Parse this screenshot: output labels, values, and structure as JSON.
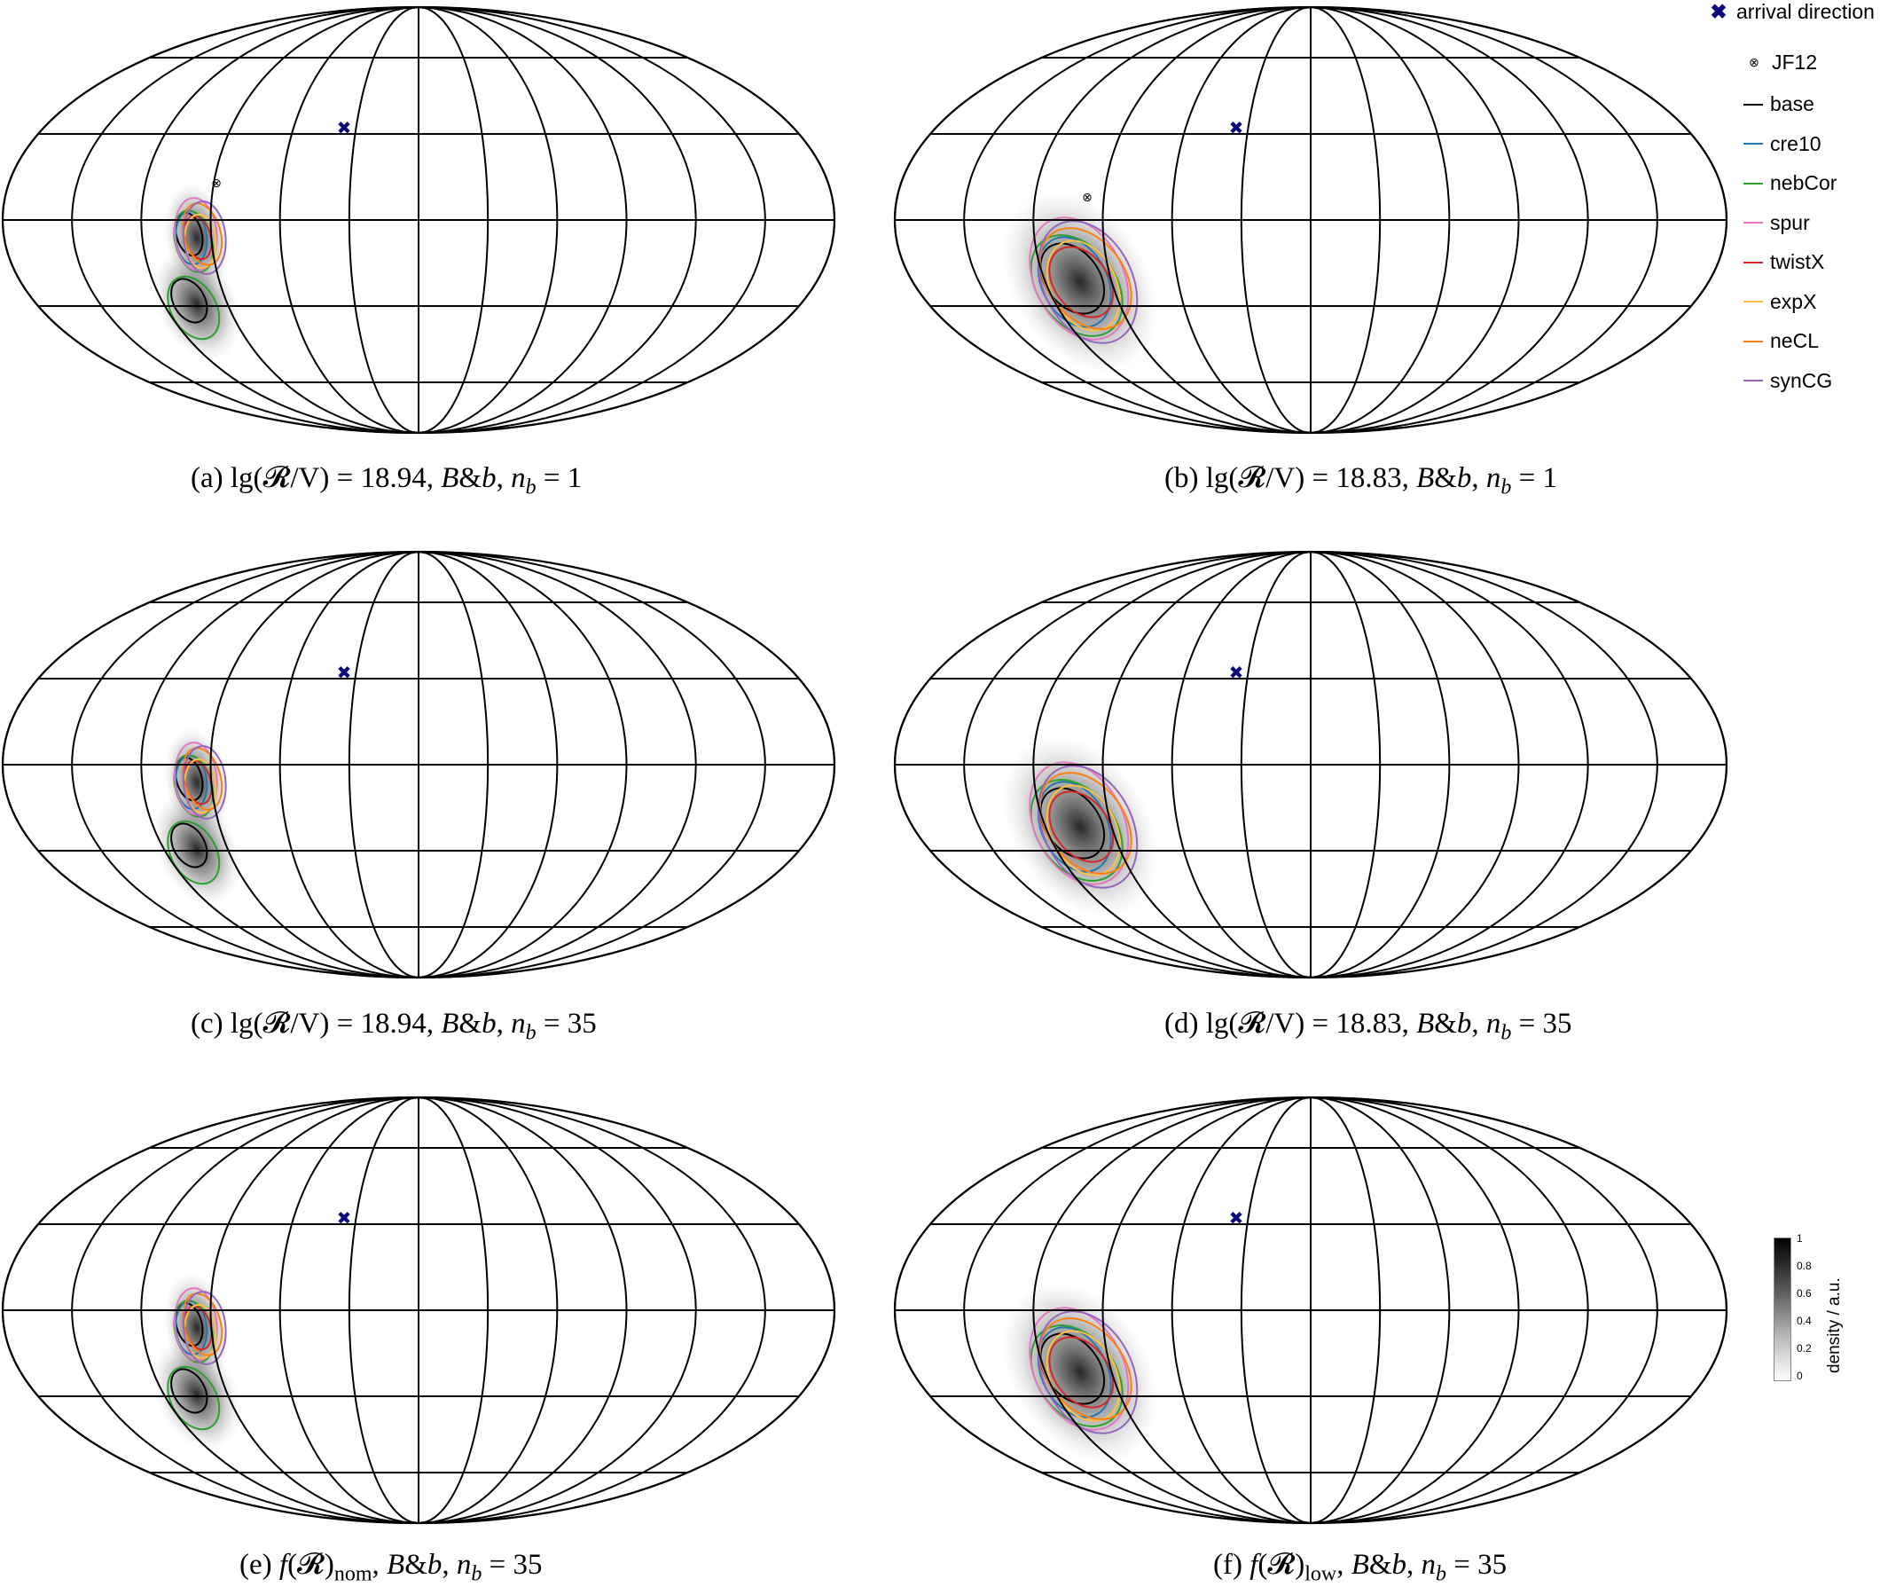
{
  "figure": {
    "panels": [
      {
        "id": "a",
        "caption": {
          "prefix": "(a)  lg(",
          "mid": "/V) = 18.94, ",
          "b1": "B",
          "amp": "&",
          "b2": "b",
          "sep": ", ",
          "n": "n",
          "sub": "b",
          "eq": " = 1",
          "calR": "𝓡"
        }
      },
      {
        "id": "b",
        "caption": {
          "prefix": "(b)  lg(",
          "mid": "/V) = 18.83, ",
          "b1": "B",
          "amp": "&",
          "b2": "b",
          "sep": ", ",
          "n": "n",
          "sub": "b",
          "eq": " = 1",
          "calR": "𝓡"
        }
      },
      {
        "id": "c",
        "caption": {
          "prefix": "(c)  lg(",
          "mid": "/V) = 18.94, ",
          "b1": "B",
          "amp": "&",
          "b2": "b",
          "sep": ", ",
          "n": "n",
          "sub": "b",
          "eq": " = 35",
          "calR": "𝓡"
        }
      },
      {
        "id": "d",
        "caption": {
          "prefix": "(d)  lg(",
          "mid": "/V) = 18.83, ",
          "b1": "B",
          "amp": "&",
          "b2": "b",
          "sep": ", ",
          "n": "n",
          "sub": "b",
          "eq": " = 35",
          "calR": "𝓡"
        }
      },
      {
        "id": "e",
        "caption": {
          "prefix": "(e)  ",
          "f": "f",
          "calR": "(𝓡)",
          "fsub": "nom",
          "sep1": ", ",
          "b1": "B",
          "amp": "&",
          "b2": "b",
          "sep": ", ",
          "n": "n",
          "sub": "b",
          "eq": " = 35"
        }
      },
      {
        "id": "f",
        "caption": {
          "prefix": "(f)  ",
          "f": "f",
          "calR": "(𝓡)",
          "fsub": "low",
          "sep1": ", ",
          "b1": "B",
          "amp": "&",
          "b2": "b",
          "sep": ", ",
          "n": "n",
          "sub": "b",
          "eq": " = 35"
        }
      }
    ]
  },
  "legend": {
    "arrival": "arrival direction",
    "jf12": "JF12",
    "items": [
      {
        "label": "base",
        "color": "#000000"
      },
      {
        "label": "cre10",
        "color": "#1f77b4"
      },
      {
        "label": "nebCor",
        "color": "#2ca02c"
      },
      {
        "label": "spur",
        "color": "#e377c2"
      },
      {
        "label": "twistX",
        "color": "#d62728"
      },
      {
        "label": "expX",
        "color": "#ffbf40"
      },
      {
        "label": "neCL",
        "color": "#ff7f0e"
      },
      {
        "label": "synCG",
        "color": "#9467bd"
      }
    ]
  },
  "colorbar": {
    "label": "density / a.u.",
    "ticks": [
      "1",
      "0.8",
      "0.6",
      "0.4",
      "0.2",
      "0"
    ]
  },
  "colors": {
    "arrival_marker": "#0a0a7a",
    "grid": "#000000"
  }
}
